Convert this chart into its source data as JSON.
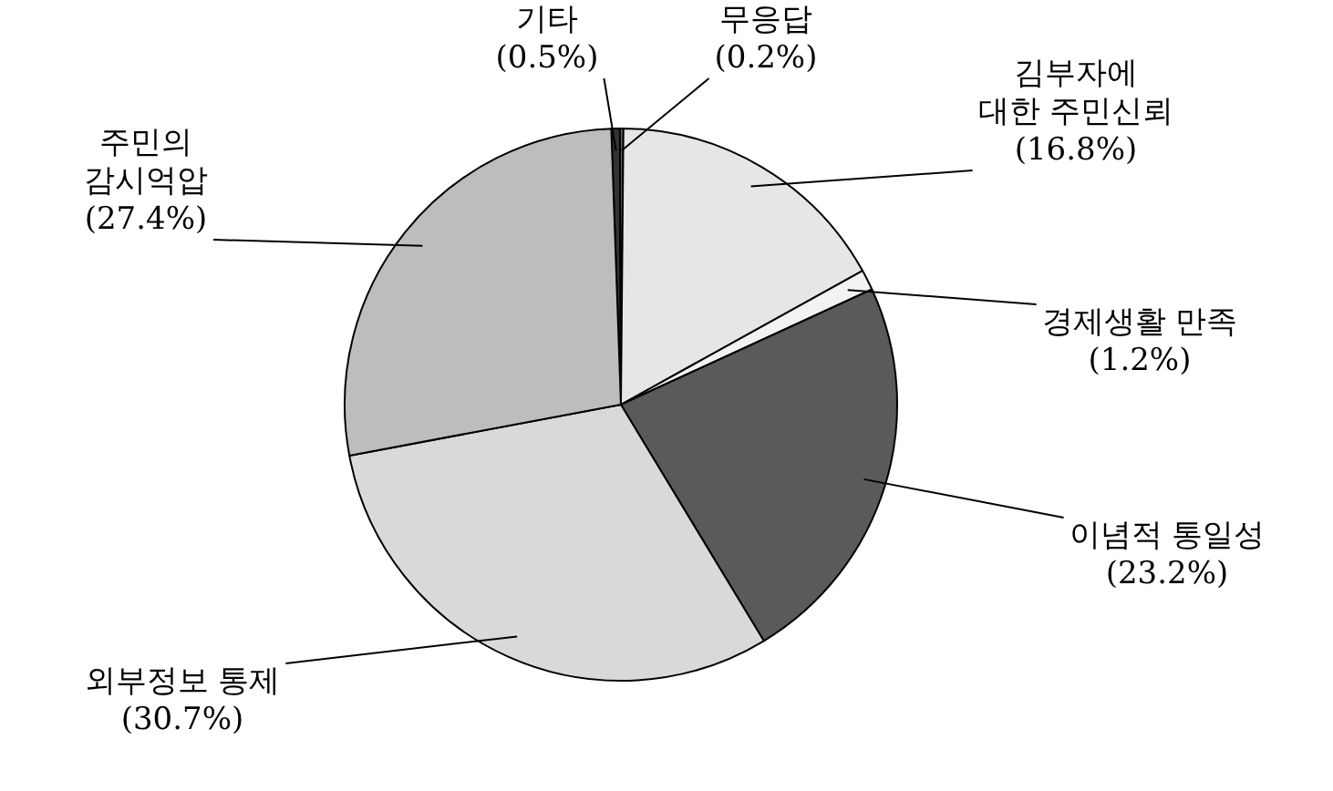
{
  "chart_data": {
    "type": "pie",
    "categories": [
      "기타",
      "무응답",
      "김부자에 대한 주민신뢰",
      "경제생활 만족",
      "이념적 통일성",
      "외부정보 통제",
      "주민의 감시억압"
    ],
    "values": [
      0.5,
      0.2,
      16.8,
      1.2,
      23.2,
      30.7,
      27.4
    ],
    "value_labels": [
      "(0.5%)",
      "(0.2%)",
      "(16.8%)",
      "(1.2%)",
      "(23.2%)",
      "(30.7%)",
      "(27.4%)"
    ],
    "colors": [
      "#333333",
      "#666666",
      "#e6e6e6",
      "#f2f2f2",
      "#5a5a5a",
      "#d9d9d9",
      "#bdbdbd"
    ]
  }
}
